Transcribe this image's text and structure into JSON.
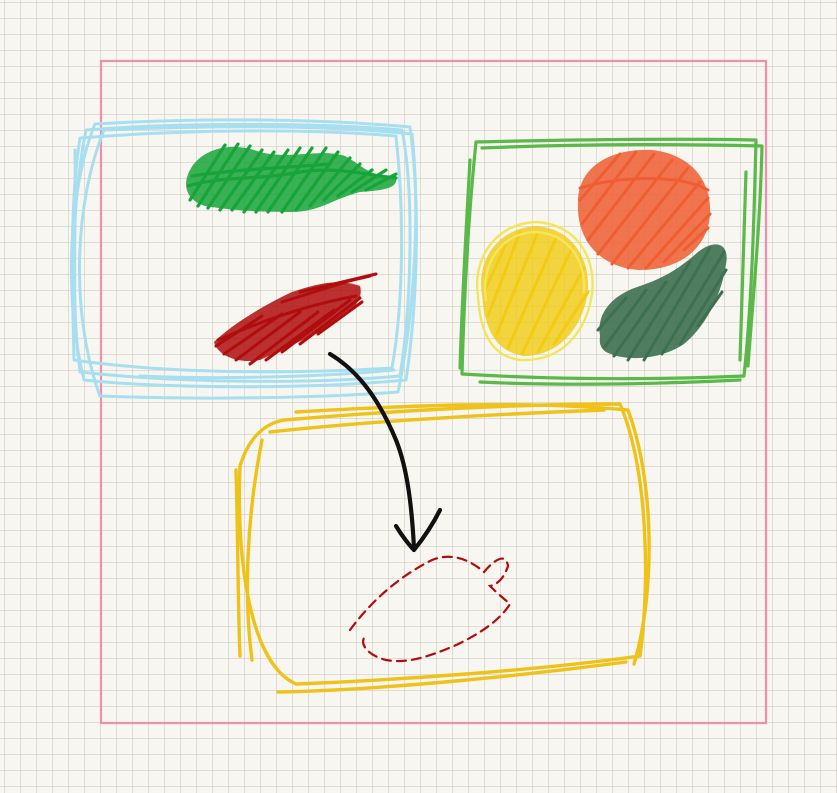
{
  "colors": {
    "paper": "#f8f6f1",
    "grid_line": "#cfcabf",
    "frame": "#ef8fae",
    "source_tray": "#a7dff0",
    "fruit_tray": "#5bb84a",
    "target_tray": "#efc21a",
    "green_pepper": "#17a43a",
    "red_pepper": "#b00e0e",
    "orange": "#ef5e33",
    "lemon": "#f2cc12",
    "lemon_outline": "#f5e55a",
    "avocado": "#3d7050",
    "arrow": "#111111",
    "ghost_outline": "#b00e0e"
  },
  "scene": {
    "frame": "pink-border",
    "source_tray_items": [
      "green-pepper-icon",
      "red-pepper-icon"
    ],
    "fruit_tray_items": [
      "orange-icon",
      "lemon-icon",
      "avocado-icon"
    ],
    "target_tray_items": [
      "red-pepper-ghost-outline"
    ],
    "arrow": "move-arrow-icon"
  }
}
